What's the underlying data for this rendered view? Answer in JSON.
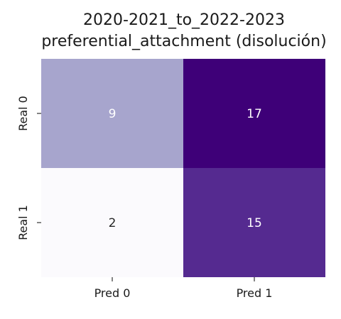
{
  "chart_data": {
    "type": "heatmap",
    "title_lines": [
      "2020-2021_to_2022-2023",
      "preferential_attachment (disolución)"
    ],
    "row_labels": [
      "Real 0",
      "Real 1"
    ],
    "col_labels": [
      "Pred 0",
      "Pred 1"
    ],
    "values": [
      [
        9,
        17
      ],
      [
        2,
        15
      ]
    ],
    "colormap": "Purples",
    "vmin": 2,
    "vmax": 17,
    "colorbar": false,
    "cell_colors": [
      [
        "#a7a5cd",
        "#3e0078"
      ],
      [
        "#fbfafd",
        "#552a90"
      ]
    ],
    "text_colors": [
      [
        "#ffffff",
        "#ffffff"
      ],
      [
        "#262626",
        "#ffffff"
      ]
    ]
  }
}
